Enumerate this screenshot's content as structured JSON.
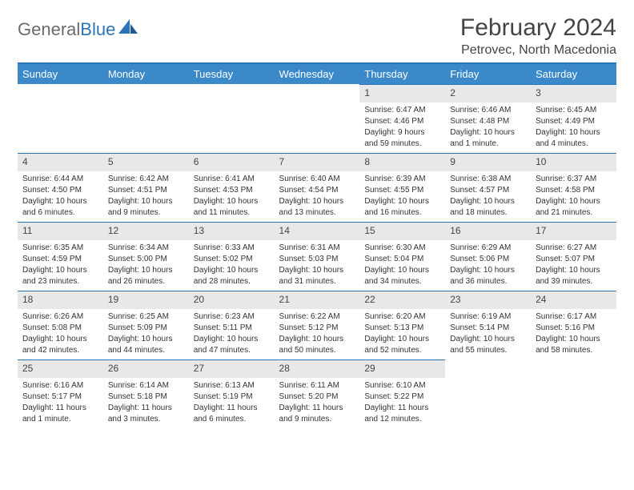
{
  "logo": {
    "text1": "General",
    "text2": "Blue"
  },
  "title": "February 2024",
  "subtitle": "Petrovec, North Macedonia",
  "colors": {
    "header_bg": "#3b89c9",
    "rule": "#2a74b8",
    "daynum_bg": "#e8e8e8",
    "logo_gray": "#6b6b6b",
    "logo_blue": "#2a74b8"
  },
  "weekdays": [
    "Sunday",
    "Monday",
    "Tuesday",
    "Wednesday",
    "Thursday",
    "Friday",
    "Saturday"
  ],
  "weeks": [
    [
      null,
      null,
      null,
      null,
      {
        "n": "1",
        "sr": "Sunrise: 6:47 AM",
        "ss": "Sunset: 4:46 PM",
        "dl1": "Daylight: 9 hours",
        "dl2": "and 59 minutes."
      },
      {
        "n": "2",
        "sr": "Sunrise: 6:46 AM",
        "ss": "Sunset: 4:48 PM",
        "dl1": "Daylight: 10 hours",
        "dl2": "and 1 minute."
      },
      {
        "n": "3",
        "sr": "Sunrise: 6:45 AM",
        "ss": "Sunset: 4:49 PM",
        "dl1": "Daylight: 10 hours",
        "dl2": "and 4 minutes."
      }
    ],
    [
      {
        "n": "4",
        "sr": "Sunrise: 6:44 AM",
        "ss": "Sunset: 4:50 PM",
        "dl1": "Daylight: 10 hours",
        "dl2": "and 6 minutes."
      },
      {
        "n": "5",
        "sr": "Sunrise: 6:42 AM",
        "ss": "Sunset: 4:51 PM",
        "dl1": "Daylight: 10 hours",
        "dl2": "and 9 minutes."
      },
      {
        "n": "6",
        "sr": "Sunrise: 6:41 AM",
        "ss": "Sunset: 4:53 PM",
        "dl1": "Daylight: 10 hours",
        "dl2": "and 11 minutes."
      },
      {
        "n": "7",
        "sr": "Sunrise: 6:40 AM",
        "ss": "Sunset: 4:54 PM",
        "dl1": "Daylight: 10 hours",
        "dl2": "and 13 minutes."
      },
      {
        "n": "8",
        "sr": "Sunrise: 6:39 AM",
        "ss": "Sunset: 4:55 PM",
        "dl1": "Daylight: 10 hours",
        "dl2": "and 16 minutes."
      },
      {
        "n": "9",
        "sr": "Sunrise: 6:38 AM",
        "ss": "Sunset: 4:57 PM",
        "dl1": "Daylight: 10 hours",
        "dl2": "and 18 minutes."
      },
      {
        "n": "10",
        "sr": "Sunrise: 6:37 AM",
        "ss": "Sunset: 4:58 PM",
        "dl1": "Daylight: 10 hours",
        "dl2": "and 21 minutes."
      }
    ],
    [
      {
        "n": "11",
        "sr": "Sunrise: 6:35 AM",
        "ss": "Sunset: 4:59 PM",
        "dl1": "Daylight: 10 hours",
        "dl2": "and 23 minutes."
      },
      {
        "n": "12",
        "sr": "Sunrise: 6:34 AM",
        "ss": "Sunset: 5:00 PM",
        "dl1": "Daylight: 10 hours",
        "dl2": "and 26 minutes."
      },
      {
        "n": "13",
        "sr": "Sunrise: 6:33 AM",
        "ss": "Sunset: 5:02 PM",
        "dl1": "Daylight: 10 hours",
        "dl2": "and 28 minutes."
      },
      {
        "n": "14",
        "sr": "Sunrise: 6:31 AM",
        "ss": "Sunset: 5:03 PM",
        "dl1": "Daylight: 10 hours",
        "dl2": "and 31 minutes."
      },
      {
        "n": "15",
        "sr": "Sunrise: 6:30 AM",
        "ss": "Sunset: 5:04 PM",
        "dl1": "Daylight: 10 hours",
        "dl2": "and 34 minutes."
      },
      {
        "n": "16",
        "sr": "Sunrise: 6:29 AM",
        "ss": "Sunset: 5:06 PM",
        "dl1": "Daylight: 10 hours",
        "dl2": "and 36 minutes."
      },
      {
        "n": "17",
        "sr": "Sunrise: 6:27 AM",
        "ss": "Sunset: 5:07 PM",
        "dl1": "Daylight: 10 hours",
        "dl2": "and 39 minutes."
      }
    ],
    [
      {
        "n": "18",
        "sr": "Sunrise: 6:26 AM",
        "ss": "Sunset: 5:08 PM",
        "dl1": "Daylight: 10 hours",
        "dl2": "and 42 minutes."
      },
      {
        "n": "19",
        "sr": "Sunrise: 6:25 AM",
        "ss": "Sunset: 5:09 PM",
        "dl1": "Daylight: 10 hours",
        "dl2": "and 44 minutes."
      },
      {
        "n": "20",
        "sr": "Sunrise: 6:23 AM",
        "ss": "Sunset: 5:11 PM",
        "dl1": "Daylight: 10 hours",
        "dl2": "and 47 minutes."
      },
      {
        "n": "21",
        "sr": "Sunrise: 6:22 AM",
        "ss": "Sunset: 5:12 PM",
        "dl1": "Daylight: 10 hours",
        "dl2": "and 50 minutes."
      },
      {
        "n": "22",
        "sr": "Sunrise: 6:20 AM",
        "ss": "Sunset: 5:13 PM",
        "dl1": "Daylight: 10 hours",
        "dl2": "and 52 minutes."
      },
      {
        "n": "23",
        "sr": "Sunrise: 6:19 AM",
        "ss": "Sunset: 5:14 PM",
        "dl1": "Daylight: 10 hours",
        "dl2": "and 55 minutes."
      },
      {
        "n": "24",
        "sr": "Sunrise: 6:17 AM",
        "ss": "Sunset: 5:16 PM",
        "dl1": "Daylight: 10 hours",
        "dl2": "and 58 minutes."
      }
    ],
    [
      {
        "n": "25",
        "sr": "Sunrise: 6:16 AM",
        "ss": "Sunset: 5:17 PM",
        "dl1": "Daylight: 11 hours",
        "dl2": "and 1 minute."
      },
      {
        "n": "26",
        "sr": "Sunrise: 6:14 AM",
        "ss": "Sunset: 5:18 PM",
        "dl1": "Daylight: 11 hours",
        "dl2": "and 3 minutes."
      },
      {
        "n": "27",
        "sr": "Sunrise: 6:13 AM",
        "ss": "Sunset: 5:19 PM",
        "dl1": "Daylight: 11 hours",
        "dl2": "and 6 minutes."
      },
      {
        "n": "28",
        "sr": "Sunrise: 6:11 AM",
        "ss": "Sunset: 5:20 PM",
        "dl1": "Daylight: 11 hours",
        "dl2": "and 9 minutes."
      },
      {
        "n": "29",
        "sr": "Sunrise: 6:10 AM",
        "ss": "Sunset: 5:22 PM",
        "dl1": "Daylight: 11 hours",
        "dl2": "and 12 minutes."
      },
      null,
      null
    ]
  ]
}
